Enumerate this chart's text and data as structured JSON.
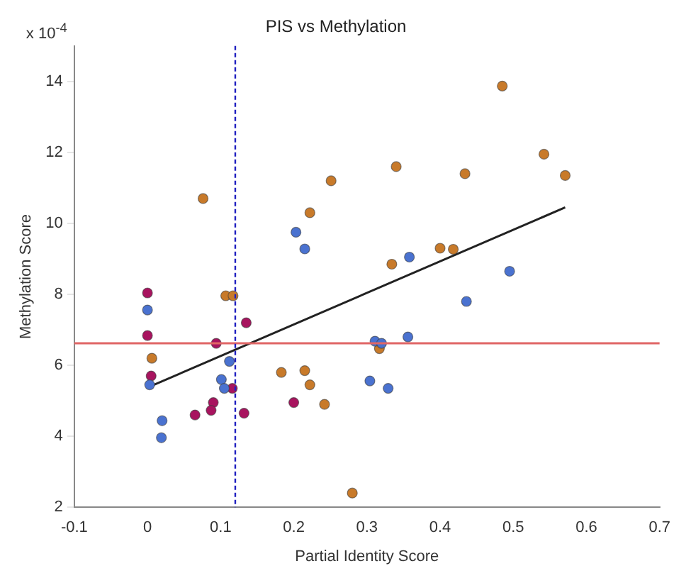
{
  "chart_data": {
    "type": "scatter",
    "title": "PIS vs Methylation",
    "xlabel": "Partial Identity Score",
    "ylabel": "Methylation Score",
    "annotations": [
      "x 10$^{-4}$"
    ],
    "xlim": [
      -0.1,
      0.7
    ],
    "xticks": [
      -0.1,
      0,
      0.1,
      0.2,
      0.3,
      0.4,
      0.5,
      0.6,
      0.7
    ],
    "ylim": [
      2,
      15
    ],
    "yticks": [
      2,
      4,
      6,
      8,
      10,
      12,
      14
    ],
    "grid": false,
    "legend": false,
    "marker": "circle",
    "series": [
      {
        "color": "#4a72d0",
        "x": [
          0,
          0.003,
          0.02,
          0.019,
          0.112,
          0.101,
          0.105,
          0.203,
          0.215,
          0.358,
          0.495,
          0.436,
          0.356,
          0.311,
          0.32,
          0.304,
          0.329
        ],
        "values": [
          7.56,
          5.45,
          4.44,
          3.96,
          6.11,
          5.6,
          5.35,
          9.75,
          9.28,
          9.05,
          8.65,
          7.8,
          6.8,
          6.68,
          6.62,
          5.56,
          5.35
        ]
      },
      {
        "color": "#a8145f",
        "x": [
          0,
          0,
          0.005,
          0.094,
          0.135,
          0.116,
          0.09,
          0.087,
          0.065,
          0.132,
          0.2
        ],
        "values": [
          8.04,
          6.84,
          5.7,
          6.62,
          7.2,
          5.35,
          4.95,
          4.73,
          4.6,
          4.65,
          4.95
        ]
      },
      {
        "color": "#c87a2a",
        "x": [
          0.006,
          0.107,
          0.117,
          0.183,
          0.215,
          0.222,
          0.242,
          0.28,
          0.076,
          0.251,
          0.222,
          0.485,
          0.34,
          0.434,
          0.542,
          0.571,
          0.334,
          0.4,
          0.418,
          0.317
        ],
        "values": [
          6.2,
          7.96,
          7.96,
          5.8,
          5.85,
          5.45,
          4.9,
          2.4,
          10.7,
          11.2,
          10.3,
          13.87,
          11.6,
          11.4,
          11.95,
          11.35,
          8.85,
          9.3,
          9.27,
          6.47
        ]
      },
      {
        "type": "line",
        "color": "#222222",
        "marker": "none",
        "x": [
          0.003,
          0.571
        ],
        "values": [
          5.4,
          10.45
        ]
      }
    ],
    "ref_lines": [
      {
        "axis": "y",
        "value": 6.62,
        "color": "#e06666",
        "line_style": "solid"
      },
      {
        "axis": "x",
        "value": 0.12,
        "color": "#2020c0",
        "line_style": "dashed"
      }
    ]
  }
}
